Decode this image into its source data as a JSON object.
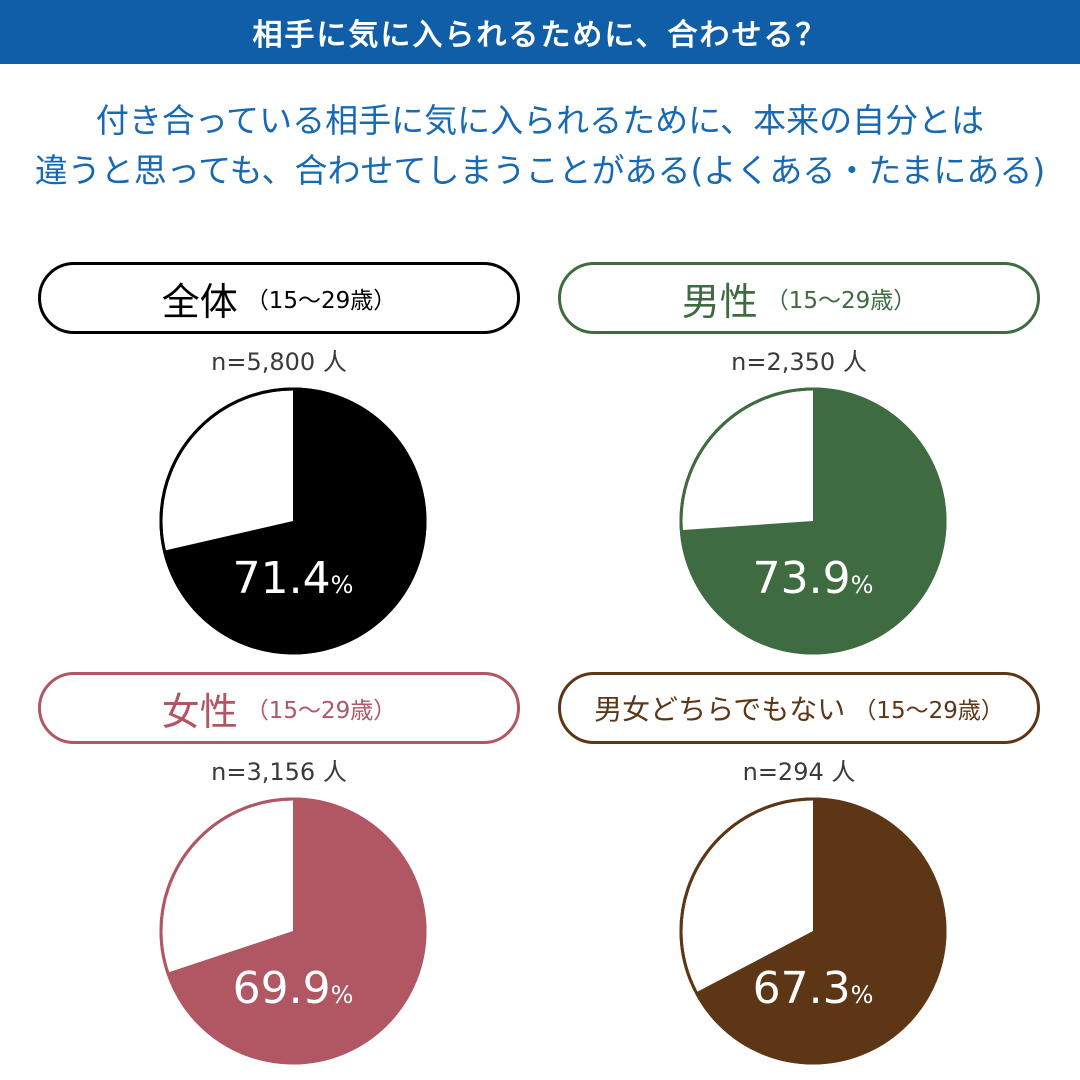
{
  "header": {
    "title": "相手に気に入られるために、合わせる？"
  },
  "question": {
    "line1": "付き合っている相手に気に入られるために、本来の自分とは",
    "line2": "違うと思っても、合わせてしまうことがある(よくある・たまにある)"
  },
  "chart_data": {
    "type": "pie",
    "title": "相手に気に入られるために、合わせる？",
    "charts": [
      {
        "label": "全体",
        "age": "（15〜29歳）",
        "n": "n=5,800 人",
        "value": 71.4,
        "value_text": "71.4",
        "unit": "%",
        "color": "#000000"
      },
      {
        "label": "男性",
        "age": "（15〜29歳）",
        "n": "n=2,350 人",
        "value": 73.9,
        "value_text": "73.9",
        "unit": "%",
        "color": "#3e6b40"
      },
      {
        "label": "女性",
        "age": "（15〜29歳）",
        "n": "n=3,156 人",
        "value": 69.9,
        "value_text": "69.9",
        "unit": "%",
        "color": "#b15663"
      },
      {
        "label": "男女どちらでもない",
        "age": "（15〜29歳）",
        "n": "n=294 人",
        "value": 67.3,
        "value_text": "67.3",
        "unit": "%",
        "color": "#5c3615"
      }
    ]
  }
}
